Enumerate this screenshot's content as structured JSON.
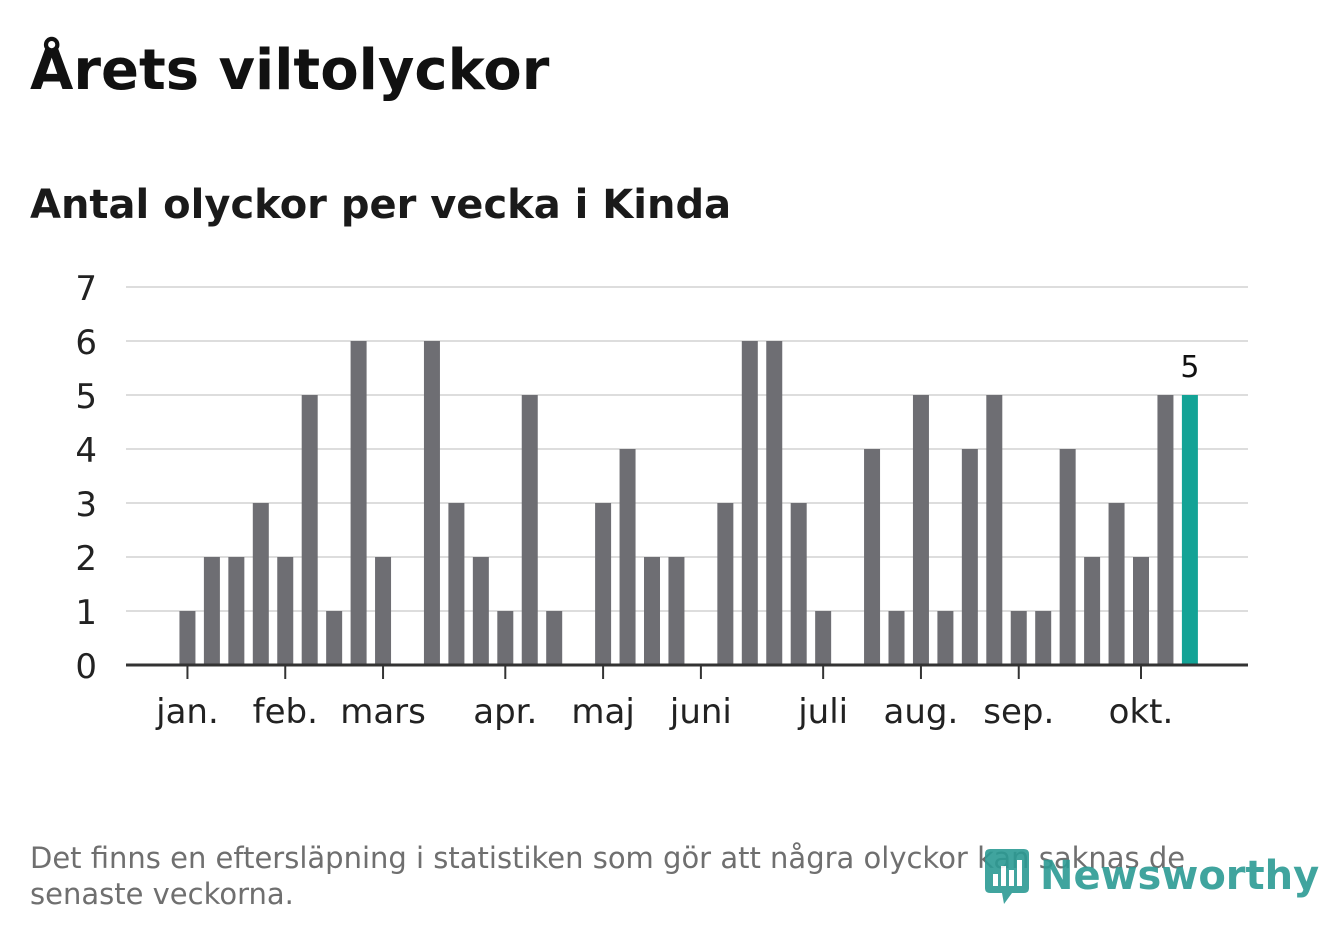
{
  "header": {
    "title": "Årets viltolyckor",
    "subtitle": "Antal olyckor per vecka i Kinda"
  },
  "footer": {
    "note": "Det finns en eftersläpning i statistiken som gör att några olyckor kan saknas de senaste veckorna.",
    "brand": "Newsworthy"
  },
  "colors": {
    "bar": "#6e6e73",
    "highlight": "#13a396",
    "grid": "#dddddd",
    "axis": "#333333",
    "brand": "#2c9b94"
  },
  "chart_data": {
    "type": "bar",
    "title": "Antal olyckor per vecka i Kinda",
    "xlabel": "",
    "ylabel": "",
    "ylim": [
      0,
      7
    ],
    "yticks": [
      "0",
      "1",
      "2",
      "3",
      "4",
      "5",
      "6",
      "7"
    ],
    "x_axis_week_range": [
      1,
      43
    ],
    "weeks": [
      1,
      2,
      3,
      4,
      5,
      6,
      7,
      8,
      9,
      10,
      11,
      12,
      13,
      14,
      15,
      16,
      17,
      18,
      19,
      20,
      21,
      22,
      23,
      24,
      25,
      26,
      27,
      28,
      29,
      30,
      31,
      32,
      33,
      34,
      35,
      36,
      36,
      37,
      38,
      39,
      40,
      41,
      42
    ],
    "values": [
      0,
      1,
      2,
      2,
      3,
      2,
      5,
      1,
      6,
      2,
      0,
      6,
      3,
      2,
      1,
      5,
      1,
      0,
      3,
      4,
      2,
      2,
      0,
      3,
      6,
      6,
      3,
      1,
      0,
      4,
      1,
      5,
      1,
      4,
      5,
      1,
      1,
      4,
      2,
      3,
      2,
      5,
      5
    ],
    "highlight_last": true,
    "highlight_label": "5",
    "month_ticks": [
      {
        "label": "jan.",
        "week": 2
      },
      {
        "label": "feb.",
        "week": 6
      },
      {
        "label": "mars",
        "week": 10
      },
      {
        "label": "apr.",
        "week": 15
      },
      {
        "label": "maj",
        "week": 19
      },
      {
        "label": "juni",
        "week": 23
      },
      {
        "label": "juli",
        "week": 28
      },
      {
        "label": "aug.",
        "week": 32
      },
      {
        "label": "sep.",
        "week": 36
      },
      {
        "label": "okt.",
        "week": 41
      }
    ]
  }
}
